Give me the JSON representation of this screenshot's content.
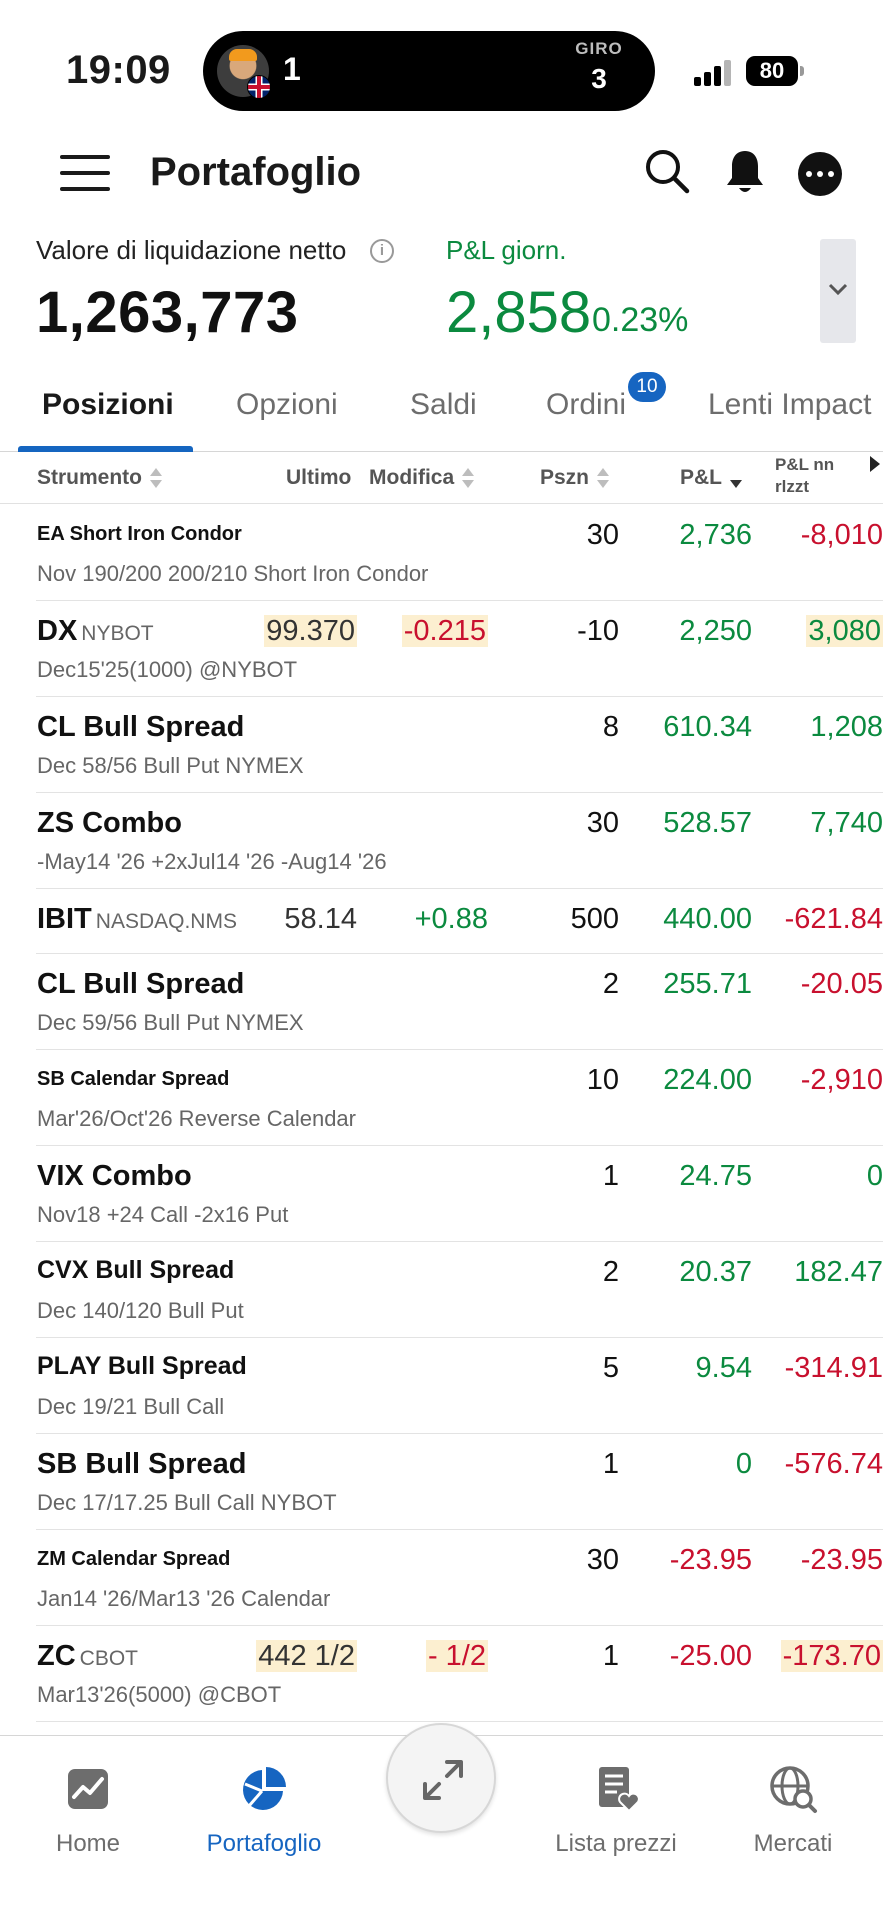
{
  "status_bar": {
    "time": "19:09",
    "race_position": "1",
    "lap_label": "GIRO",
    "lap_number": "3",
    "battery": "80"
  },
  "header": {
    "title": "Portafoglio"
  },
  "summary": {
    "nlv_label": "Valore di liquidazione netto",
    "nlv_value": "1,263,773",
    "pnl_label": "P&L giorn.",
    "pnl_value": "2,858",
    "pnl_pct": "0.23%"
  },
  "tabs": [
    {
      "label": "Posizioni",
      "active": true
    },
    {
      "label": "Opzioni"
    },
    {
      "label": "Saldi"
    },
    {
      "label": "Ordini",
      "badge": "10"
    },
    {
      "label": "Lenti Impact"
    }
  ],
  "columns": {
    "instrument": "Strumento",
    "last": "Ultimo",
    "change": "Modifica",
    "position": "Pszn",
    "pnl": "P&L",
    "unrealized_l1": "P&L nn",
    "unrealized_l2": "rlzzt"
  },
  "rows": [
    {
      "name": "EA Short Iron Condor",
      "exch": "",
      "sub": "Nov 190/200 200/210 Short Iron Condor",
      "last": "",
      "chg": "",
      "pos": "30",
      "pnl": "2,736",
      "unr": "-8,010",
      "small": true,
      "pnl_color": "green",
      "unr_color": "red"
    },
    {
      "name": "DX",
      "exch": "NYBOT",
      "sub": "Dec15'25(1000) @NYBOT",
      "last": "99.370",
      "chg": "-0.215",
      "pos": "-10",
      "pnl": "2,250",
      "unr": "3,080",
      "pnl_color": "green",
      "unr_color": "green",
      "last_hl": true,
      "chg_hl": true,
      "unr_hl": true,
      "chg_color": "red",
      "last_color": "dark"
    },
    {
      "name": "CL Bull Spread",
      "exch": "",
      "sub": "Dec 58/56 Bull Put NYMEX",
      "last": "",
      "chg": "",
      "pos": "8",
      "pnl": "610.34",
      "unr": "1,208",
      "pnl_color": "green",
      "unr_color": "green"
    },
    {
      "name": "ZS Combo",
      "exch": "",
      "sub": "-May14 '26  +2xJul14 '26  -Aug14 '26",
      "last": "",
      "chg": "",
      "pos": "30",
      "pnl": "528.57",
      "unr": "7,740",
      "pnl_color": "green",
      "unr_color": "green"
    },
    {
      "name": "IBIT",
      "exch": "NASDAQ.NMS",
      "sub": "",
      "last": "58.14",
      "chg": "+0.88",
      "pos": "500",
      "pnl": "440.00",
      "unr": "-621.84",
      "pnl_color": "green",
      "unr_color": "red",
      "chg_color": "green",
      "last_color": "dark",
      "single": true
    },
    {
      "name": "CL Bull Spread",
      "exch": "",
      "sub": "Dec 59/56 Bull Put NYMEX",
      "last": "",
      "chg": "",
      "pos": "2",
      "pnl": "255.71",
      "unr": "-20.05",
      "pnl_color": "green",
      "unr_color": "red"
    },
    {
      "name": "SB Calendar Spread",
      "exch": "",
      "sub": "Mar'26/Oct'26 Reverse Calendar",
      "last": "",
      "chg": "",
      "pos": "10",
      "pnl": "224.00",
      "unr": "-2,910",
      "small": true,
      "pnl_color": "green",
      "unr_color": "red"
    },
    {
      "name": "VIX Combo",
      "exch": "",
      "sub": "Nov18  +24 Call  -2x16 Put",
      "last": "",
      "chg": "",
      "pos": "1",
      "pnl": "24.75",
      "unr": "0",
      "pnl_color": "green",
      "unr_color": "green"
    },
    {
      "name": "CVX Bull Spread",
      "exch": "",
      "sub": "Dec 140/120 Bull Put",
      "last": "",
      "chg": "",
      "pos": "2",
      "pnl": "20.37",
      "unr": "182.47",
      "mid": true,
      "pnl_color": "green",
      "unr_color": "green"
    },
    {
      "name": "PLAY Bull Spread",
      "exch": "",
      "sub": "Dec 19/21 Bull Call",
      "last": "",
      "chg": "",
      "pos": "5",
      "pnl": "9.54",
      "unr": "-314.91",
      "mid": true,
      "pnl_color": "green",
      "unr_color": "red"
    },
    {
      "name": "SB Bull Spread",
      "exch": "",
      "sub": "Dec 17/17.25 Bull Call NYBOT",
      "last": "",
      "chg": "",
      "pos": "1",
      "pnl": "0",
      "unr": "-576.74",
      "pnl_color": "green",
      "unr_color": "red"
    },
    {
      "name": "ZM Calendar Spread",
      "exch": "",
      "sub": "Jan14 '26/Mar13 '26 Calendar",
      "last": "",
      "chg": "",
      "pos": "30",
      "pnl": "-23.95",
      "unr": "-23.95",
      "small": true,
      "pnl_color": "red",
      "unr_color": "red"
    },
    {
      "name": "ZC",
      "exch": "CBOT",
      "sub": "Mar13'26(5000) @CBOT",
      "last": "442 1/2",
      "chg": "- 1/2",
      "pos": "1",
      "pnl": "-25.00",
      "unr": "-173.70",
      "pnl_color": "red",
      "unr_color": "red",
      "last_hl": true,
      "chg_hl": true,
      "unr_hl": true,
      "chg_color": "red",
      "last_color": "dark"
    }
  ],
  "bottom_nav": [
    {
      "label": "Home",
      "icon": "chart-home-icon"
    },
    {
      "label": "Portafoglio",
      "icon": "pie-chart-icon",
      "active": true
    },
    {
      "label": "Lista prezzi",
      "icon": "watchlist-heart-icon"
    },
    {
      "label": "Mercati",
      "icon": "globe-search-icon"
    }
  ],
  "fab_icon": "expand-arrows-icon",
  "colors": {
    "accent": "#1665c1",
    "positive": "#0b8a3f",
    "negative": "#c8102e",
    "highlight": "#fcefd0"
  }
}
